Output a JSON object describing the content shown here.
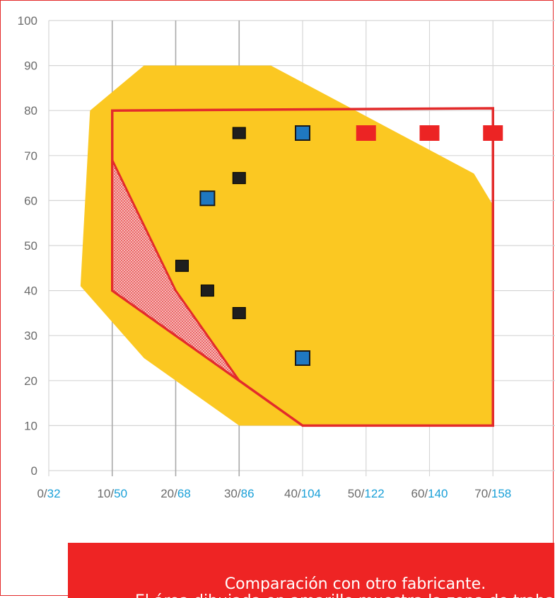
{
  "colors": {
    "envelope_fill": "#fbc822",
    "outline": "#e32b2b",
    "grid": "#d6d6d6",
    "marker_black": "#1e1e1e",
    "marker_blue": "#1f78c1",
    "marker_red": "#ec2424",
    "tick_primary": "#6b6b6b",
    "tick_secondary": "#1aa0d8",
    "caption_bg": "#ee2424"
  },
  "chart_data": {
    "type": "scatter",
    "title": "",
    "xlabel": "",
    "ylabel": "",
    "xlim": [
      0,
      80
    ],
    "ylim": [
      0,
      100
    ],
    "grid": true,
    "yticks": [
      "0",
      "10",
      "20",
      "30",
      "40",
      "50",
      "60",
      "70",
      "80",
      "90",
      "100"
    ],
    "xticks": [
      {
        "value": 0,
        "a": "0/",
        "b": "32"
      },
      {
        "value": 10,
        "a": "10/",
        "b": "50"
      },
      {
        "value": 20,
        "a": "20/",
        "b": "68"
      },
      {
        "value": 30,
        "a": "30/",
        "b": "86"
      },
      {
        "value": 40,
        "a": "40/",
        "b": "104"
      },
      {
        "value": 50,
        "a": "50/",
        "b": "122"
      },
      {
        "value": 60,
        "a": "60/",
        "b": "140"
      },
      {
        "value": 70,
        "a": "70/",
        "b": "158"
      }
    ],
    "regions": [
      {
        "kind": "filled-area",
        "color": "#fbc822",
        "points": [
          [
            6.5,
            80
          ],
          [
            15,
            90
          ],
          [
            35,
            90
          ],
          [
            67,
            66
          ],
          [
            70,
            59
          ],
          [
            70,
            10
          ],
          [
            40,
            10
          ],
          [
            30,
            10
          ],
          [
            15,
            25
          ],
          [
            5,
            41
          ]
        ]
      },
      {
        "kind": "outline",
        "color": "#e32b2b",
        "points": [
          [
            10,
            80
          ],
          [
            70,
            80.5
          ],
          [
            70,
            10
          ],
          [
            40,
            10
          ],
          [
            30,
            20
          ],
          [
            10,
            40
          ]
        ]
      },
      {
        "kind": "hatched-area",
        "color": "#e32b2b",
        "points": [
          [
            10,
            69
          ],
          [
            20,
            40
          ],
          [
            30,
            20
          ],
          [
            10,
            40
          ]
        ]
      }
    ],
    "series": [
      {
        "marker": "black-square",
        "points": [
          [
            30,
            75
          ],
          [
            30,
            65
          ],
          [
            21,
            45.5
          ],
          [
            25,
            40
          ],
          [
            30,
            35
          ]
        ]
      },
      {
        "marker": "blue-square",
        "points": [
          [
            40,
            75
          ],
          [
            25,
            60.5
          ],
          [
            40,
            25
          ]
        ]
      },
      {
        "marker": "red-square",
        "points": [
          [
            50,
            75
          ],
          [
            60,
            75
          ],
          [
            70,
            75
          ]
        ]
      }
    ]
  },
  "caption": {
    "line1": "Comparación con otro fabricante.",
    "line2": "El área dibujada en amarillo muestra la zona de trabajo"
  }
}
